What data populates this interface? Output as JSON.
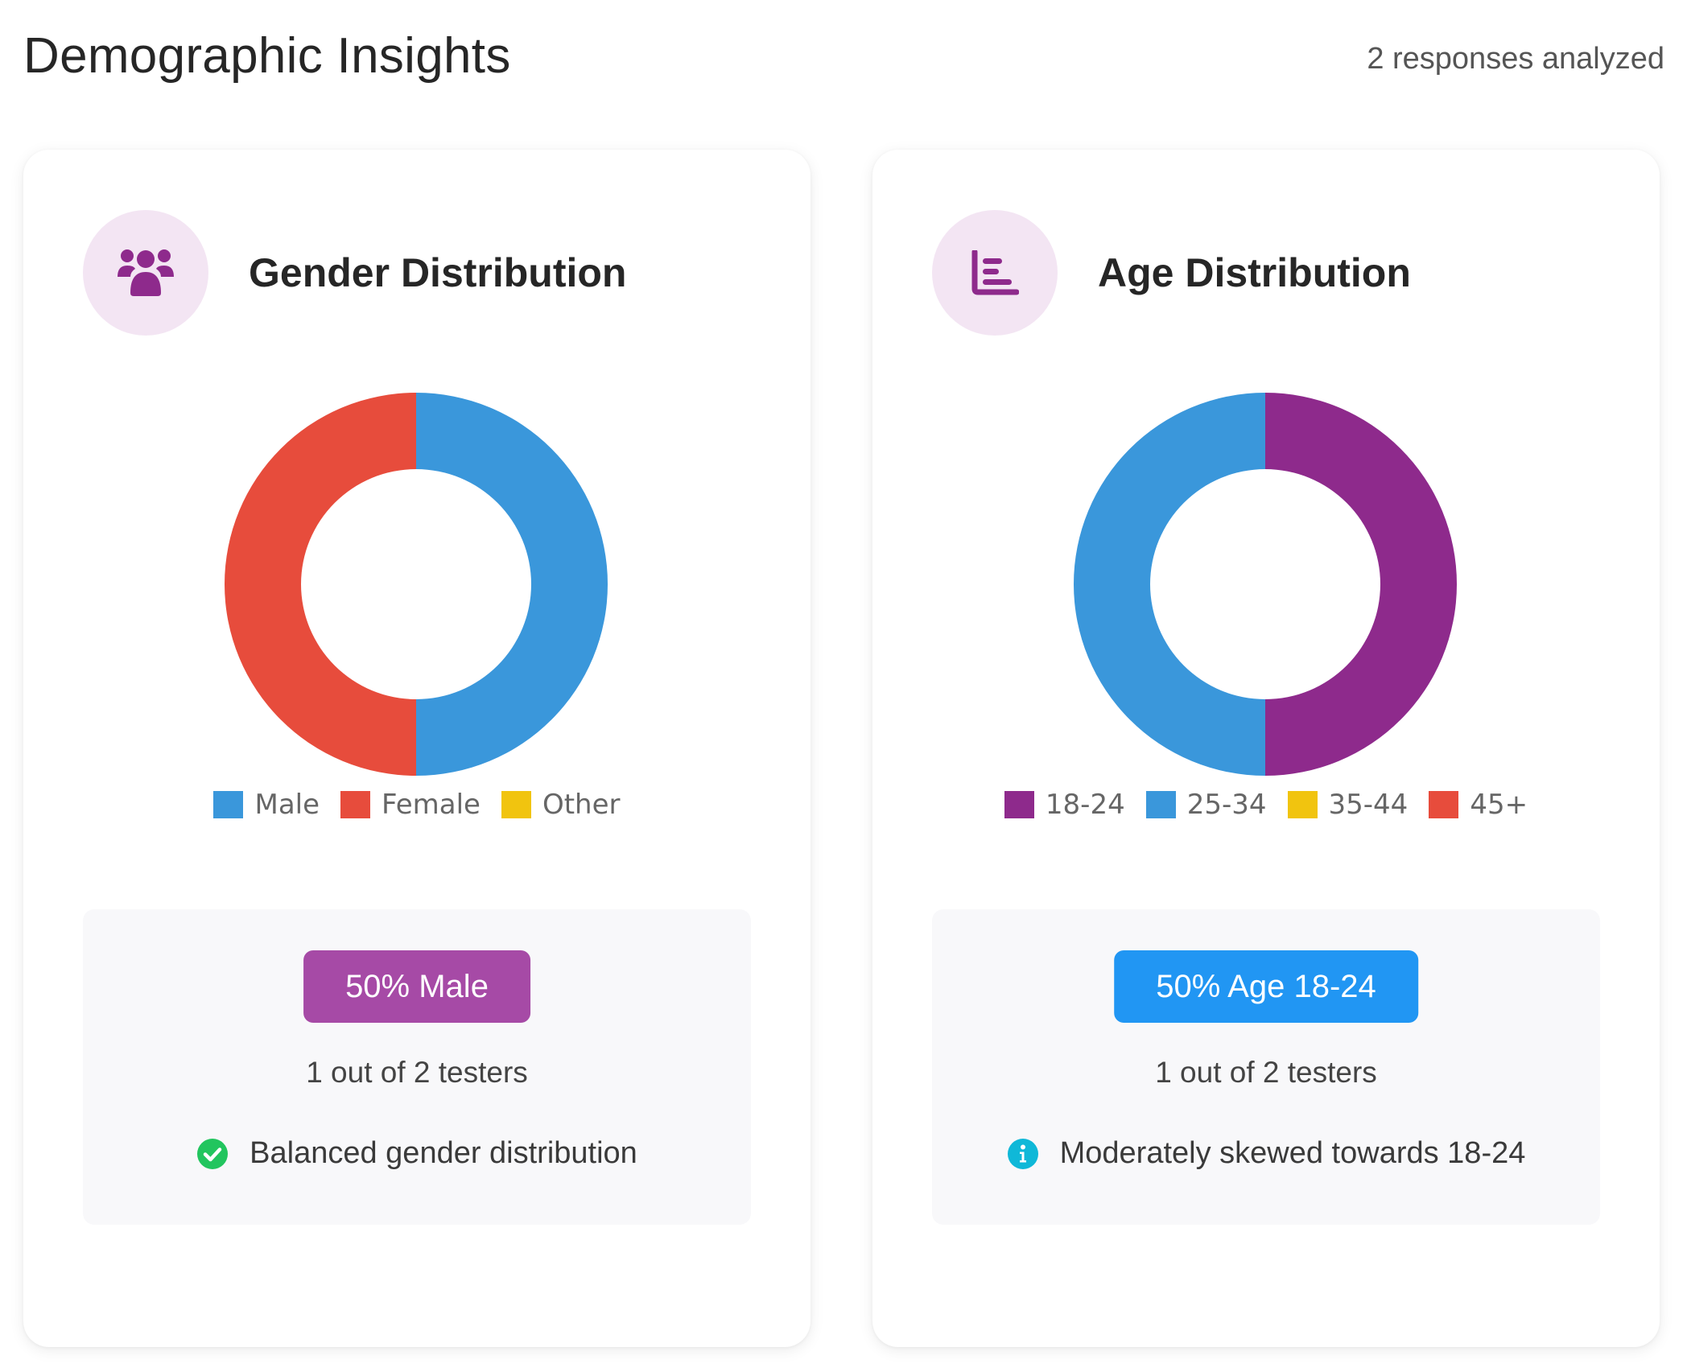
{
  "page": {
    "title": "Demographic Insights",
    "responses_label": "2 responses analyzed"
  },
  "cards": [
    {
      "title": "Gender Distribution",
      "icon": "users-icon",
      "pill_text": "50% Male",
      "pill_color": "#a64aa6",
      "count_text": "1 out of 2 testers",
      "note_text": "Balanced gender distribution",
      "note_icon": "check-circle-icon",
      "note_icon_color": "#22c55e"
    },
    {
      "title": "Age Distribution",
      "icon": "bar-chart-icon",
      "pill_text": "50% Age 18-24",
      "pill_color": "#2196f3",
      "count_text": "1 out of 2 testers",
      "note_text": "Moderately skewed towards 18-24",
      "note_icon": "info-circle-icon",
      "note_icon_color": "#0fb8d8"
    }
  ],
  "chart_data": [
    {
      "type": "pie",
      "donut": true,
      "categories": [
        "Male",
        "Female",
        "Other"
      ],
      "values": [
        1,
        1,
        0
      ],
      "colors": [
        "#3a97db",
        "#e74c3c",
        "#f1c40f"
      ],
      "legend_position": "bottom"
    },
    {
      "type": "pie",
      "donut": true,
      "categories": [
        "18-24",
        "25-34",
        "35-44",
        "45+"
      ],
      "values": [
        1,
        1,
        0,
        0
      ],
      "colors": [
        "#8e2a8c",
        "#3a97db",
        "#f1c40f",
        "#e74c3c"
      ],
      "legend_position": "bottom"
    }
  ]
}
